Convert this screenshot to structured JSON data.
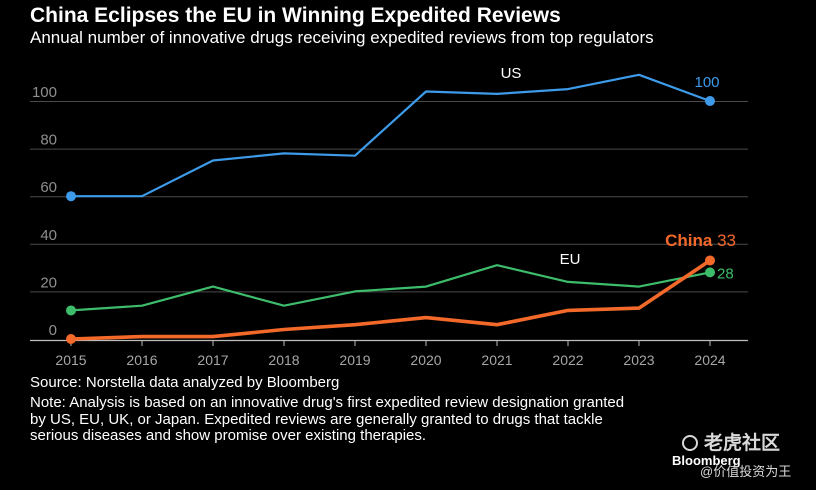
{
  "header": {
    "title": "China Eclipses the EU in Winning Expedited Reviews",
    "subtitle": "Annual number of innovative drugs receiving expedited reviews from top regulators"
  },
  "chart_data": {
    "type": "line",
    "x": [
      2015,
      2016,
      2017,
      2018,
      2019,
      2020,
      2021,
      2022,
      2023,
      2024
    ],
    "x_tick_labels": [
      "2015",
      "2016",
      "2017",
      "2018",
      "2019",
      "2020",
      "2021",
      "2022",
      "2023",
      "2024"
    ],
    "y_ticks": [
      0,
      20,
      40,
      60,
      80,
      100
    ],
    "y_tick_labels": [
      "0",
      "20",
      "40",
      "60",
      "80",
      "100"
    ],
    "ylim": [
      0,
      115
    ],
    "grid": true,
    "series": [
      {
        "name": "US",
        "label": "US",
        "color": "#3d9be9",
        "values": [
          60,
          60,
          75,
          78,
          77,
          104,
          103,
          105,
          111,
          100
        ],
        "end_label": "100"
      },
      {
        "name": "EU",
        "label": "EU",
        "color": "#3dbd6b",
        "values": [
          12,
          14,
          22,
          14,
          20,
          22,
          31,
          24,
          22,
          28
        ],
        "end_label": "28"
      },
      {
        "name": "China",
        "label": "China",
        "color": "#f2692a",
        "values": [
          0,
          1,
          1,
          4,
          6,
          9,
          6,
          12,
          13,
          33
        ],
        "end_label": "33"
      }
    ]
  },
  "footer": {
    "source": "Source: Norstella data analyzed by Bloomberg",
    "note": "Note: Analysis is based on an innovative drug's first expedited review designation granted by US, EU, UK, or Japan. Expedited reviews are generally granted to drugs that tackle serious diseases and show promise over existing therapies.",
    "brand": "Bloomberg"
  },
  "watermark": {
    "name": "老虎社区",
    "handle": "@价值投资为王"
  }
}
